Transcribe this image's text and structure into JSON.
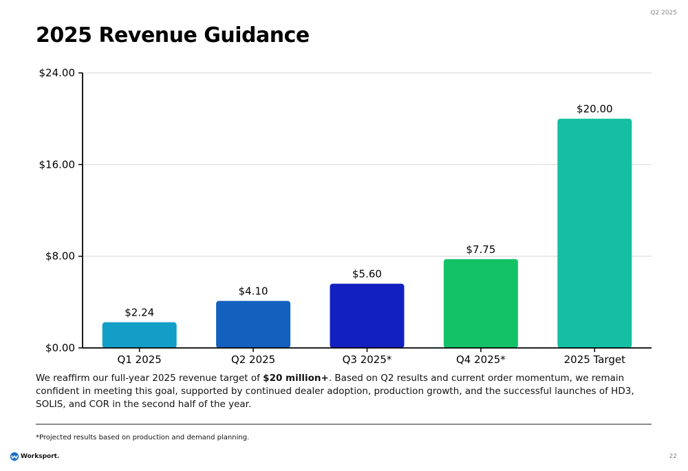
{
  "header": {
    "tag": "Q2 2025"
  },
  "title": "2025 Revenue Guidance",
  "chart_data": {
    "type": "bar",
    "categories": [
      "Q1 2025",
      "Q2 2025",
      "Q3 2025*",
      "Q4 2025*",
      "2025 Target"
    ],
    "values": [
      2.24,
      4.1,
      5.6,
      7.75,
      20.0
    ],
    "value_labels": [
      "$2.24",
      "$4.10",
      "$5.60",
      "$7.75",
      "$20.00"
    ],
    "colors": [
      "#139EC7",
      "#1460BF",
      "#1220BF",
      "#13C266",
      "#14BFA3"
    ],
    "ylim": [
      0,
      24
    ],
    "yticks": [
      0,
      8,
      16,
      24
    ],
    "ytick_labels": [
      "$0.00",
      "$8.00",
      "$16.00",
      "$24.00"
    ],
    "grid": true,
    "title": "",
    "xlabel": "",
    "ylabel": ""
  },
  "body": {
    "text_before": "We reaffirm our full-year 2025 revenue target of ",
    "bold": "$20 million+",
    "text_after": ". Based on Q2 results and current order momentum, we remain confident in meeting this goal, supported by continued dealer adoption, production growth, and the successful launches of HD3, SOLIS, and COR in the second half of the year."
  },
  "footnote": "*Projected results based on production and demand planning.",
  "footer": {
    "logo_text": "Worksport.",
    "page_number": "22"
  }
}
